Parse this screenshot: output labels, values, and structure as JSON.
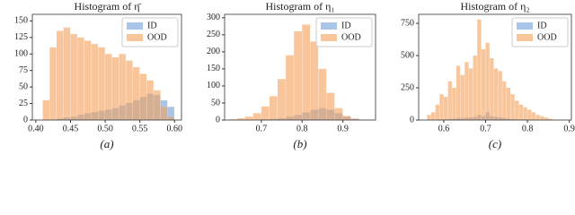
{
  "chart_data": [
    {
      "type": "histogram",
      "title": "Histogram of η̄",
      "caption": "(a)",
      "bins": [
        0.41,
        0.42,
        0.43,
        0.44,
        0.45,
        0.46,
        0.47,
        0.48,
        0.49,
        0.5,
        0.51,
        0.52,
        0.53,
        0.54,
        0.55,
        0.56,
        0.57,
        0.58,
        0.59,
        0.6
      ],
      "series": [
        {
          "name": "ID",
          "color": "#6f9fd8",
          "values": [
            0,
            0,
            2,
            4,
            5,
            8,
            10,
            12,
            14,
            16,
            18,
            22,
            26,
            30,
            35,
            40,
            38,
            30,
            20
          ]
        },
        {
          "name": "OOD",
          "color": "#f5a05a",
          "values": [
            30,
            110,
            135,
            140,
            130,
            125,
            120,
            115,
            110,
            100,
            95,
            100,
            90,
            80,
            70,
            60,
            45,
            20,
            5
          ]
        }
      ],
      "xlim": [
        0.395,
        0.61
      ],
      "xticks": [
        {
          "value": 0.4,
          "label": "0.40"
        },
        0.45,
        {
          "value": 0.5,
          "label": "0.50"
        },
        0.55,
        {
          "value": 0.6,
          "label": "0.60"
        }
      ],
      "ylim": [
        0,
        160
      ],
      "yticks": [
        0,
        25,
        50,
        75,
        100,
        125,
        150
      ],
      "legend": "upper right"
    },
    {
      "type": "histogram",
      "title": "Histogram of η₁",
      "caption": "(b)",
      "bins": [
        0.62,
        0.64,
        0.66,
        0.68,
        0.7,
        0.72,
        0.74,
        0.76,
        0.78,
        0.8,
        0.82,
        0.84,
        0.86,
        0.88,
        0.9,
        0.92,
        0.94,
        0.96
      ],
      "series": [
        {
          "name": "ID",
          "color": "#6f9fd8",
          "values": [
            0,
            0,
            0,
            1,
            2,
            3,
            5,
            10,
            15,
            22,
            30,
            35,
            30,
            20,
            10,
            4,
            1
          ]
        },
        {
          "name": "OOD",
          "color": "#f5a05a",
          "values": [
            2,
            5,
            10,
            20,
            40,
            70,
            120,
            190,
            260,
            280,
            230,
            150,
            80,
            35,
            12,
            4,
            1
          ]
        }
      ],
      "xlim": [
        0.61,
        0.98
      ],
      "xticks": [
        0.7,
        0.8,
        0.9
      ],
      "ylim": [
        0,
        310
      ],
      "yticks": [
        0,
        50,
        100,
        150,
        200,
        250,
        300
      ],
      "legend": "upper right"
    },
    {
      "type": "histogram",
      "title": "Histogram of η₂",
      "caption": "(c)",
      "bins": [
        0.56,
        0.57,
        0.58,
        0.59,
        0.6,
        0.61,
        0.62,
        0.63,
        0.64,
        0.65,
        0.66,
        0.67,
        0.68,
        0.69,
        0.7,
        0.71,
        0.72,
        0.73,
        0.74,
        0.75,
        0.76,
        0.77,
        0.78,
        0.79,
        0.8,
        0.81,
        0.82,
        0.83,
        0.84,
        0.85,
        0.86
      ],
      "series": [
        {
          "name": "ID",
          "color": "#6f9fd8",
          "values": [
            0,
            0,
            0,
            5,
            5,
            10,
            10,
            15,
            15,
            20,
            20,
            25,
            40,
            30,
            60,
            30,
            25,
            20,
            15,
            10,
            8,
            6,
            5,
            4,
            3,
            2,
            1,
            1,
            0,
            0
          ]
        },
        {
          "name": "OOD",
          "color": "#f5a05a",
          "values": [
            40,
            60,
            120,
            200,
            180,
            300,
            250,
            420,
            350,
            450,
            400,
            500,
            780,
            550,
            600,
            480,
            400,
            380,
            300,
            250,
            200,
            150,
            120,
            100,
            80,
            60,
            40,
            30,
            20,
            10
          ]
        }
      ],
      "xlim": [
        0.54,
        0.905
      ],
      "xticks": [
        0.6,
        0.7,
        0.8,
        0.9
      ],
      "ylim": [
        0,
        820
      ],
      "yticks": [
        0,
        250,
        500,
        750
      ],
      "legend": "upper right"
    }
  ]
}
